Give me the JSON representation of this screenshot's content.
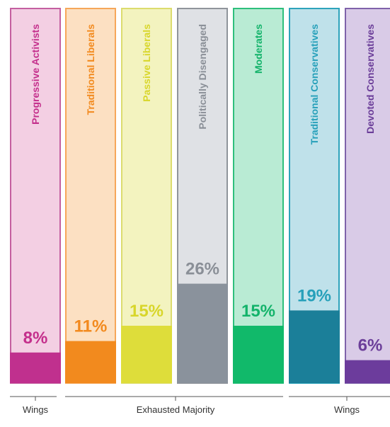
{
  "chart_data": {
    "type": "bar",
    "title": "",
    "xlabel": "",
    "ylabel": "",
    "ylim": [
      0,
      42
    ],
    "grid": false,
    "legend": "none",
    "categories": [
      "Progressive Activists",
      "Traditional Liberals",
      "Passive Liberals",
      "Politically Disengaged",
      "Moderates",
      "Traditional Conservatives",
      "Devoted Conservatives"
    ],
    "values": [
      8,
      11,
      15,
      26,
      15,
      19,
      6
    ],
    "value_labels": [
      "8%",
      "11%",
      "15%",
      "26%",
      "15%",
      "19%",
      "6%"
    ],
    "colors": {
      "fill": [
        "#c0308e",
        "#f28a1e",
        "#dedd3a",
        "#8a929c",
        "#11b96a",
        "#1b7f99",
        "#6c3c9c"
      ],
      "tint": [
        "#f3cfe3",
        "#fce0c2",
        "#f3f3bf",
        "#dfe1e5",
        "#b9ebd4",
        "#bfe1ea",
        "#d9cbe7"
      ],
      "outline": [
        "#c45fa0",
        "#f6a75a",
        "#dcdc6e",
        "#8f949b",
        "#2ebf7c",
        "#2ea3bb",
        "#7f62aa"
      ],
      "label": [
        "#c42f8c",
        "#f28a1e",
        "#d8d62a",
        "#8a8f97",
        "#13b36a",
        "#27a0ba",
        "#6b3e99"
      ]
    },
    "groups": [
      {
        "label": "Wings"
      },
      {
        "label": "Exhausted Majority"
      },
      {
        "label": "Wings"
      }
    ]
  }
}
